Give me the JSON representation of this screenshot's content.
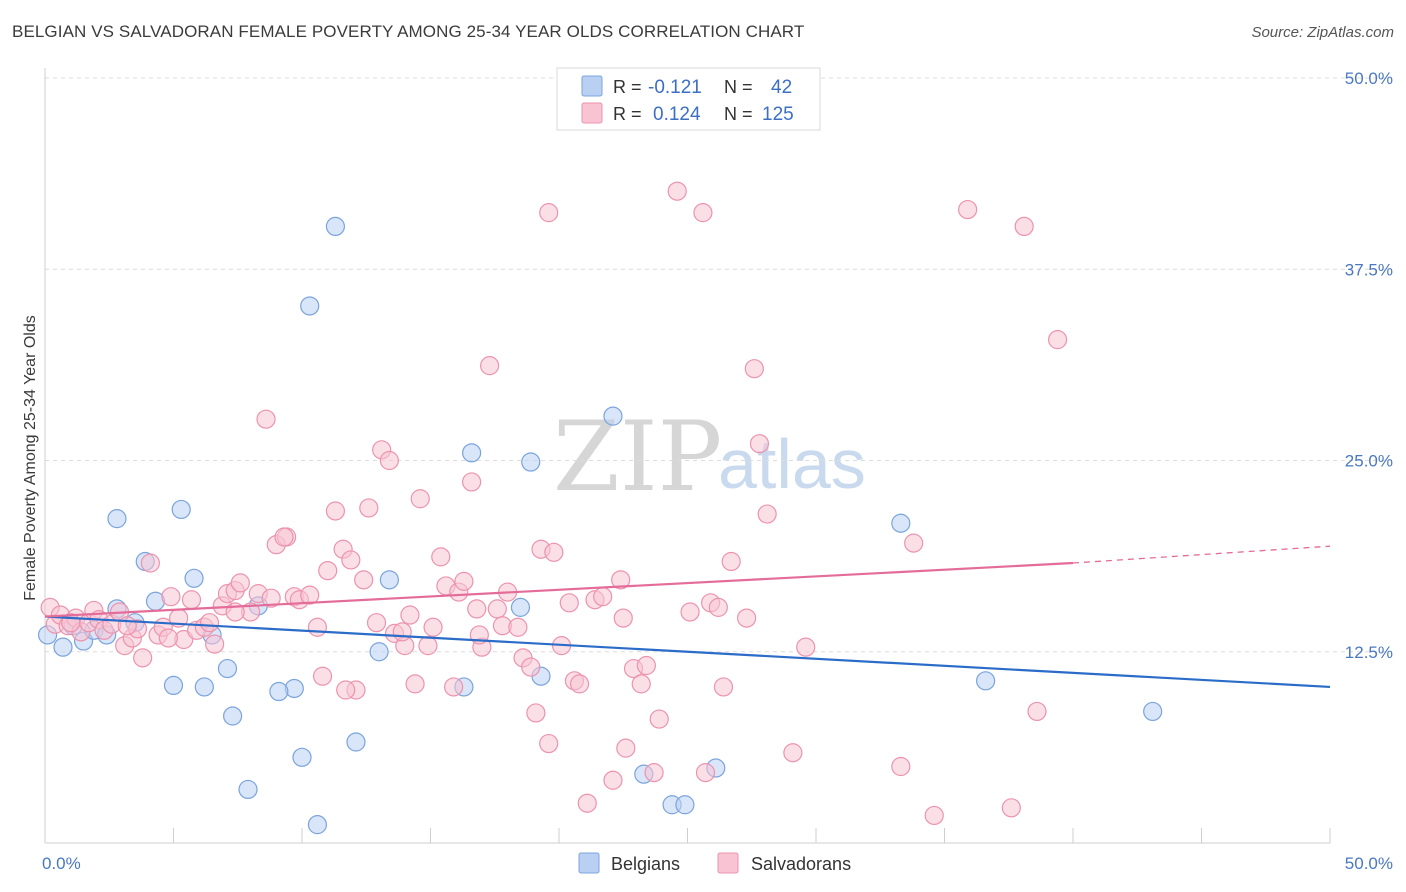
{
  "title": "BELGIAN VS SALVADORAN FEMALE POVERTY AMONG 25-34 YEAR OLDS CORRELATION CHART",
  "source": "Source: ZipAtlas.com",
  "watermark": {
    "zip": "ZIP",
    "atlas": "atlas"
  },
  "colors": {
    "belgians_fill": "#b9d0f3",
    "belgians_stroke": "#7aa4dc",
    "belgians_line": "#2b6cc9",
    "salvadorans_fill": "#f8c4d4",
    "salvadorans_stroke": "#ec93ae",
    "salvadorans_line": "#e46c99",
    "tick_label": "#4a78c2",
    "grid": "#dcdcdc"
  },
  "legend_top": {
    "rows": [
      {
        "r_label": "R =",
        "r_value": "-0.121",
        "n_label": "N =",
        "n_value": "42"
      },
      {
        "r_label": "R =",
        "r_value": "0.124",
        "n_label": "N =",
        "n_value": "125"
      }
    ]
  },
  "legend_bottom": [
    "Belgians",
    "Salvadorans"
  ],
  "chart_data": {
    "type": "scatter",
    "title": "BELGIAN VS SALVADORAN FEMALE POVERTY AMONG 25-34 YEAR OLDS CORRELATION CHART",
    "xlabel": "",
    "ylabel": "Female Poverty Among 25-34 Year Olds",
    "xlim": [
      0,
      50
    ],
    "ylim": [
      0,
      50
    ],
    "x_tick_labels": [
      "0.0%",
      "50.0%"
    ],
    "y_ticks": [
      12.5,
      25.0,
      37.5,
      50.0
    ],
    "y_tick_labels": [
      "12.5%",
      "25.0%",
      "37.5%",
      "50.0%"
    ],
    "grid": "horizontal dashed",
    "legend_position": "top-center",
    "series": [
      {
        "name": "Belgians",
        "r": -0.121,
        "n": 42,
        "trend": {
          "x": [
            0,
            50
          ],
          "y": [
            14.8,
            10.2
          ]
        },
        "points": [
          [
            0.1,
            13.6
          ],
          [
            0.7,
            12.8
          ],
          [
            1.1,
            14.2
          ],
          [
            1.5,
            13.2
          ],
          [
            1.9,
            13.9
          ],
          [
            2.4,
            13.6
          ],
          [
            2.8,
            15.3
          ],
          [
            3.5,
            14.4
          ],
          [
            2.8,
            21.2
          ],
          [
            3.9,
            18.4
          ],
          [
            4.3,
            15.8
          ],
          [
            5.3,
            21.8
          ],
          [
            5.8,
            17.3
          ],
          [
            7.1,
            11.4
          ],
          [
            5.0,
            10.3
          ],
          [
            6.2,
            10.2
          ],
          [
            8.3,
            15.5
          ],
          [
            7.3,
            8.3
          ],
          [
            7.9,
            3.5
          ],
          [
            9.7,
            10.1
          ],
          [
            10.0,
            5.6
          ],
          [
            11.3,
            40.3
          ],
          [
            10.3,
            35.1
          ],
          [
            10.6,
            1.2
          ],
          [
            12.1,
            6.6
          ],
          [
            13.0,
            12.5
          ],
          [
            13.4,
            17.2
          ],
          [
            16.3,
            10.2
          ],
          [
            16.6,
            25.5
          ],
          [
            18.5,
            15.4
          ],
          [
            18.9,
            24.9
          ],
          [
            19.3,
            10.9
          ],
          [
            22.1,
            27.9
          ],
          [
            23.3,
            4.5
          ],
          [
            24.4,
            2.5
          ],
          [
            24.9,
            2.5
          ],
          [
            26.1,
            4.9
          ],
          [
            33.3,
            20.9
          ],
          [
            36.6,
            10.6
          ],
          [
            43.1,
            8.6
          ],
          [
            9.1,
            9.9
          ],
          [
            6.5,
            13.6
          ]
        ]
      },
      {
        "name": "Salvadorans",
        "r": 0.124,
        "n": 125,
        "trend": {
          "x": [
            0,
            40
          ],
          "y": [
            14.8,
            18.3
          ]
        },
        "trend_dashed": {
          "x": [
            40,
            50
          ],
          "y": [
            18.3,
            19.4
          ]
        },
        "points": [
          [
            0.2,
            15.4
          ],
          [
            0.4,
            14.3
          ],
          [
            0.6,
            14.9
          ],
          [
            0.9,
            14.2
          ],
          [
            1.2,
            14.7
          ],
          [
            1.4,
            13.8
          ],
          [
            1.7,
            14.4
          ],
          [
            1.9,
            15.2
          ],
          [
            2.1,
            14.6
          ],
          [
            2.3,
            13.9
          ],
          [
            2.6,
            14.3
          ],
          [
            2.9,
            15.1
          ],
          [
            3.1,
            12.9
          ],
          [
            3.4,
            13.4
          ],
          [
            3.6,
            14.0
          ],
          [
            3.8,
            12.1
          ],
          [
            4.1,
            18.3
          ],
          [
            4.4,
            13.6
          ],
          [
            4.6,
            14.1
          ],
          [
            4.9,
            16.1
          ],
          [
            5.2,
            14.7
          ],
          [
            5.4,
            13.3
          ],
          [
            5.7,
            15.9
          ],
          [
            5.9,
            13.9
          ],
          [
            6.2,
            14.1
          ],
          [
            6.4,
            14.4
          ],
          [
            6.6,
            13.0
          ],
          [
            6.9,
            15.5
          ],
          [
            7.1,
            16.3
          ],
          [
            7.4,
            16.5
          ],
          [
            7.6,
            17.0
          ],
          [
            8.0,
            15.1
          ],
          [
            8.3,
            16.3
          ],
          [
            8.6,
            27.7
          ],
          [
            8.8,
            16.0
          ],
          [
            9.0,
            19.5
          ],
          [
            9.4,
            20.0
          ],
          [
            9.7,
            16.1
          ],
          [
            9.9,
            15.9
          ],
          [
            10.3,
            16.2
          ],
          [
            10.6,
            14.1
          ],
          [
            10.8,
            10.9
          ],
          [
            11.0,
            17.8
          ],
          [
            11.3,
            21.7
          ],
          [
            11.6,
            19.2
          ],
          [
            11.9,
            18.5
          ],
          [
            12.1,
            10.0
          ],
          [
            12.4,
            17.2
          ],
          [
            12.6,
            21.9
          ],
          [
            12.9,
            14.4
          ],
          [
            13.1,
            25.7
          ],
          [
            13.4,
            25.0
          ],
          [
            13.6,
            13.7
          ],
          [
            14.0,
            12.9
          ],
          [
            14.2,
            14.9
          ],
          [
            14.4,
            10.4
          ],
          [
            14.6,
            22.5
          ],
          [
            14.9,
            12.9
          ],
          [
            15.1,
            14.1
          ],
          [
            15.4,
            18.7
          ],
          [
            15.6,
            16.8
          ],
          [
            15.9,
            10.2
          ],
          [
            16.1,
            16.4
          ],
          [
            16.3,
            17.1
          ],
          [
            16.6,
            23.6
          ],
          [
            16.8,
            15.3
          ],
          [
            17.0,
            12.8
          ],
          [
            17.3,
            31.2
          ],
          [
            17.6,
            15.3
          ],
          [
            17.8,
            14.2
          ],
          [
            18.0,
            16.4
          ],
          [
            18.4,
            14.1
          ],
          [
            18.6,
            12.1
          ],
          [
            18.9,
            11.5
          ],
          [
            19.1,
            8.5
          ],
          [
            19.3,
            19.2
          ],
          [
            19.6,
            6.5
          ],
          [
            19.8,
            19.0
          ],
          [
            20.1,
            12.9
          ],
          [
            20.4,
            15.7
          ],
          [
            20.6,
            10.6
          ],
          [
            20.8,
            10.4
          ],
          [
            21.1,
            2.6
          ],
          [
            21.4,
            15.9
          ],
          [
            21.7,
            16.1
          ],
          [
            22.1,
            4.1
          ],
          [
            22.4,
            17.2
          ],
          [
            22.6,
            6.2
          ],
          [
            22.9,
            11.4
          ],
          [
            23.2,
            10.4
          ],
          [
            23.4,
            11.6
          ],
          [
            23.7,
            4.6
          ],
          [
            23.9,
            8.1
          ],
          [
            24.6,
            42.6
          ],
          [
            25.1,
            15.1
          ],
          [
            25.6,
            41.2
          ],
          [
            25.9,
            15.7
          ],
          [
            26.4,
            10.2
          ],
          [
            26.7,
            18.4
          ],
          [
            27.3,
            14.7
          ],
          [
            27.6,
            31.0
          ],
          [
            27.8,
            26.1
          ],
          [
            28.1,
            21.5
          ],
          [
            29.1,
            5.9
          ],
          [
            29.6,
            12.8
          ],
          [
            33.3,
            5.0
          ],
          [
            33.8,
            19.6
          ],
          [
            34.6,
            1.8
          ],
          [
            35.9,
            41.4
          ],
          [
            37.6,
            2.3
          ],
          [
            38.1,
            40.3
          ],
          [
            38.6,
            8.6
          ],
          [
            39.4,
            32.9
          ],
          [
            19.6,
            41.2
          ],
          [
            7.4,
            15.1
          ],
          [
            4.8,
            13.4
          ],
          [
            9.3,
            20.0
          ],
          [
            16.9,
            13.6
          ],
          [
            11.7,
            10.0
          ],
          [
            13.9,
            13.8
          ],
          [
            22.5,
            14.7
          ],
          [
            26.2,
            15.4
          ],
          [
            1.0,
            14.4
          ],
          [
            3.2,
            14.2
          ],
          [
            25.7,
            4.6
          ]
        ]
      }
    ]
  }
}
